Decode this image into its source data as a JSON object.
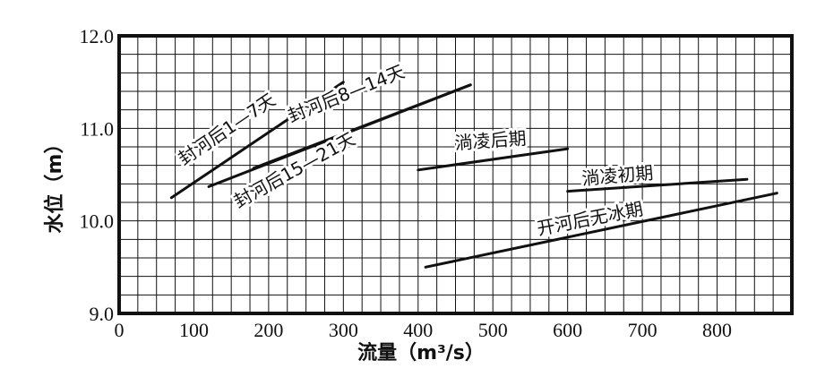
{
  "chart_data": {
    "type": "line",
    "title": "",
    "xlabel": "流量（m³/s）",
    "ylabel": "水位（m）",
    "xlim": [
      0,
      900
    ],
    "ylim": [
      9.0,
      12.0
    ],
    "x_ticks": [
      0,
      100,
      200,
      300,
      400,
      500,
      600,
      700,
      800
    ],
    "x_tick_labels": [
      "0",
      "100",
      "200",
      "300",
      "400",
      "500",
      "600",
      "700",
      "800"
    ],
    "y_ticks": [
      9.0,
      10.0,
      11.0,
      12.0
    ],
    "y_tick_labels": [
      "9.0",
      "10.0",
      "11.0",
      "12.0"
    ],
    "grid": true,
    "series": [
      {
        "name": "封河后1—7天",
        "x": [
          70,
          300
        ],
        "y": [
          10.25,
          11.5
        ]
      },
      {
        "name": "封河后8—14天",
        "x": [
          180,
          470
        ],
        "y": [
          10.57,
          11.47
        ]
      },
      {
        "name": "封河后15—21天",
        "x": [
          120,
          470
        ],
        "y": [
          10.37,
          11.47
        ]
      },
      {
        "name": "淌凌后期",
        "x": [
          400,
          600
        ],
        "y": [
          10.55,
          10.78
        ]
      },
      {
        "name": "淌凌初期",
        "x": [
          600,
          840
        ],
        "y": [
          10.32,
          10.45
        ]
      },
      {
        "name": "开河后无冰期",
        "x": [
          410,
          880
        ],
        "y": [
          9.5,
          10.3
        ]
      }
    ]
  },
  "labels": {
    "series_1": "封河后1—7天",
    "series_2": "封河后8—14天",
    "series_3": "封河后15—21天",
    "series_4": "淌凌后期",
    "series_5": "淌凌初期",
    "series_6": "开河后无冰期"
  }
}
